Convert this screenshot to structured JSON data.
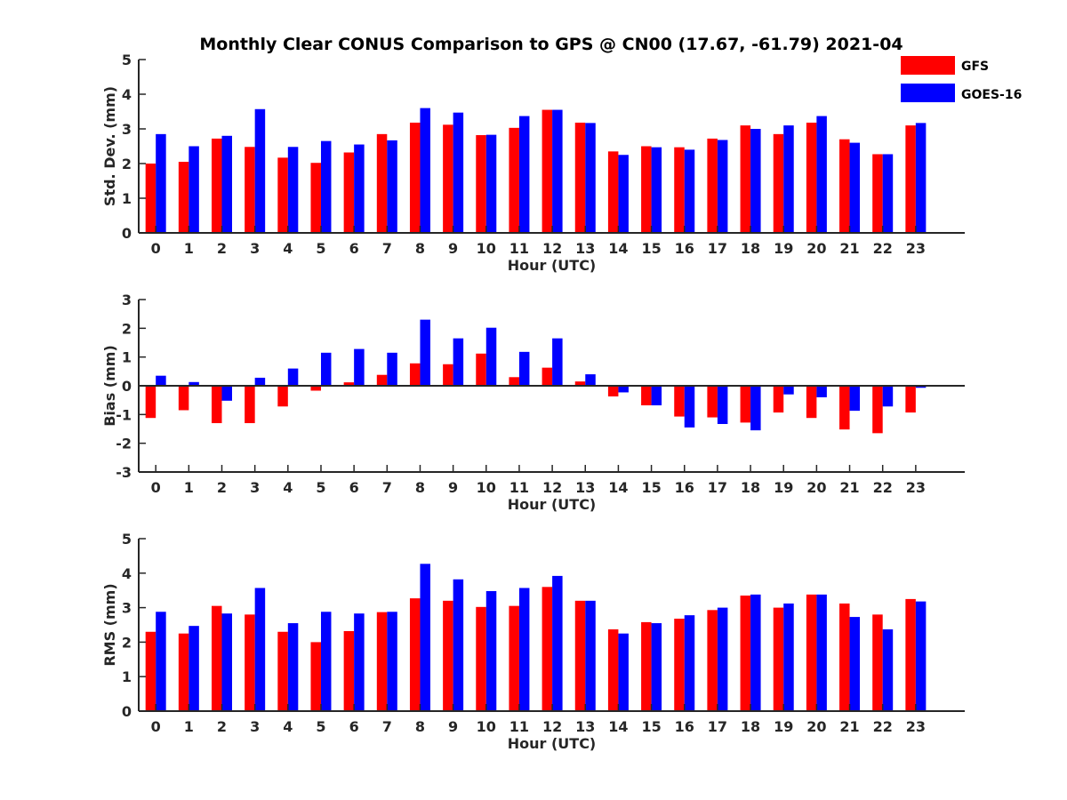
{
  "chart_data": {
    "type": "bar",
    "title": "Monthly Clear CONUS Comparison to GPS @ CN00 (17.67, -61.79) 2021-04",
    "legend": {
      "placement": "top-right",
      "entries": [
        {
          "name": "GFS",
          "color": "#ff0000"
        },
        {
          "name": "GOES-16",
          "color": "#0000ff"
        }
      ]
    },
    "categories": [
      "0",
      "1",
      "2",
      "3",
      "4",
      "5",
      "6",
      "7",
      "8",
      "9",
      "10",
      "11",
      "12",
      "13",
      "14",
      "15",
      "16",
      "17",
      "18",
      "19",
      "20",
      "21",
      "22",
      "23"
    ],
    "panels": [
      {
        "key": "std",
        "ylabel": "Std. Dev. (mm)",
        "xlabel": "Hour (UTC)",
        "ylim": [
          0,
          5
        ],
        "yticks": [
          "0",
          "1",
          "2",
          "3",
          "4",
          "5"
        ],
        "series": [
          {
            "name": "GFS",
            "values": [
              2.0,
              2.05,
              2.72,
              2.48,
              2.17,
              2.02,
              2.32,
              2.85,
              3.18,
              3.12,
              2.82,
              3.03,
              3.55,
              3.18,
              2.35,
              2.5,
              2.47,
              2.72,
              3.1,
              2.85,
              3.18,
              2.7,
              2.27,
              3.1
            ]
          },
          {
            "name": "GOES-16",
            "values": [
              2.85,
              2.5,
              2.8,
              3.57,
              2.48,
              2.65,
              2.55,
              2.67,
              3.6,
              3.47,
              2.83,
              3.37,
              3.55,
              3.17,
              2.25,
              2.47,
              2.4,
              2.68,
              3.0,
              3.1,
              3.37,
              2.6,
              2.27,
              3.17
            ]
          }
        ]
      },
      {
        "key": "bias",
        "ylabel": "Bias (mm)",
        "xlabel": "Hour (UTC)",
        "ylim": [
          -3,
          3
        ],
        "yticks": [
          "-3",
          "-2",
          "-1",
          "0",
          "1",
          "2",
          "3"
        ],
        "series": [
          {
            "name": "GFS",
            "values": [
              -1.12,
              -0.85,
              -1.3,
              -1.3,
              -0.72,
              -0.17,
              0.12,
              0.38,
              0.78,
              0.75,
              1.12,
              0.3,
              0.63,
              0.15,
              -0.37,
              -0.68,
              -1.07,
              -1.1,
              -1.28,
              -0.93,
              -1.12,
              -1.52,
              -1.65,
              -0.93
            ]
          },
          {
            "name": "GOES-16",
            "values": [
              0.35,
              0.13,
              -0.52,
              0.28,
              0.6,
              1.15,
              1.28,
              1.15,
              2.3,
              1.65,
              2.02,
              1.18,
              1.65,
              0.4,
              -0.23,
              -0.68,
              -1.45,
              -1.33,
              -1.55,
              -0.3,
              -0.4,
              -0.87,
              -0.72,
              -0.07
            ]
          }
        ]
      },
      {
        "key": "rms",
        "ylabel": "RMS (mm)",
        "xlabel": "Hour (UTC)",
        "ylim": [
          0,
          5
        ],
        "yticks": [
          "0",
          "1",
          "2",
          "3",
          "4",
          "5"
        ],
        "series": [
          {
            "name": "GFS",
            "values": [
              2.3,
              2.25,
              3.05,
              2.8,
              2.3,
              2.0,
              2.32,
              2.87,
              3.27,
              3.2,
              3.02,
              3.05,
              3.6,
              3.2,
              2.37,
              2.58,
              2.68,
              2.93,
              3.35,
              3.0,
              3.38,
              3.12,
              2.8,
              3.25
            ]
          },
          {
            "name": "GOES-16",
            "values": [
              2.88,
              2.47,
              2.83,
              3.57,
              2.55,
              2.88,
              2.83,
              2.88,
              4.27,
              3.82,
              3.48,
              3.57,
              3.92,
              3.2,
              2.25,
              2.55,
              2.78,
              3.0,
              3.38,
              3.12,
              3.38,
              2.73,
              2.37,
              3.18
            ]
          }
        ]
      }
    ]
  }
}
